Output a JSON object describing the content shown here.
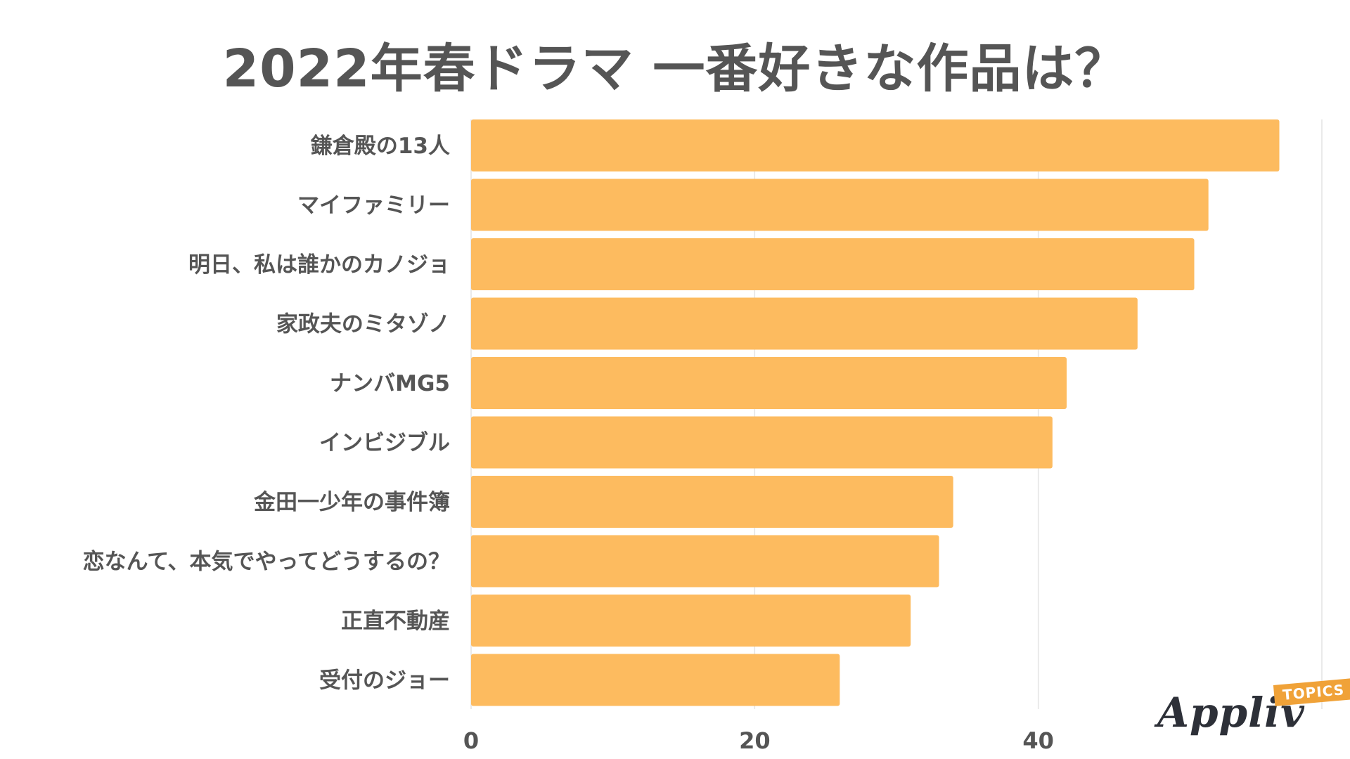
{
  "chart_data": {
    "type": "bar",
    "orientation": "horizontal",
    "title": "2022年春ドラマ 一番好きな作品は？",
    "categories": [
      "鎌倉殿の13人",
      "マイファミリー",
      "明日、私は誰かのカノジョ",
      "家政夫のミタゾノ",
      "ナンバMG5",
      "インビジブル",
      "金田一少年の事件簿",
      "恋なんて、本気でやってどうするの？",
      "正直不動産",
      "受付のジョー"
    ],
    "values": [
      57,
      52,
      51,
      47,
      42,
      41,
      34,
      33,
      31,
      26
    ],
    "xlim": [
      0,
      60
    ],
    "xticks": [
      0,
      20,
      40
    ],
    "xlabel": "",
    "ylabel": "",
    "grid": true,
    "bar_color": "#fdbb5f"
  },
  "logo": {
    "text": "Appliv",
    "badge": "TOPICS"
  }
}
